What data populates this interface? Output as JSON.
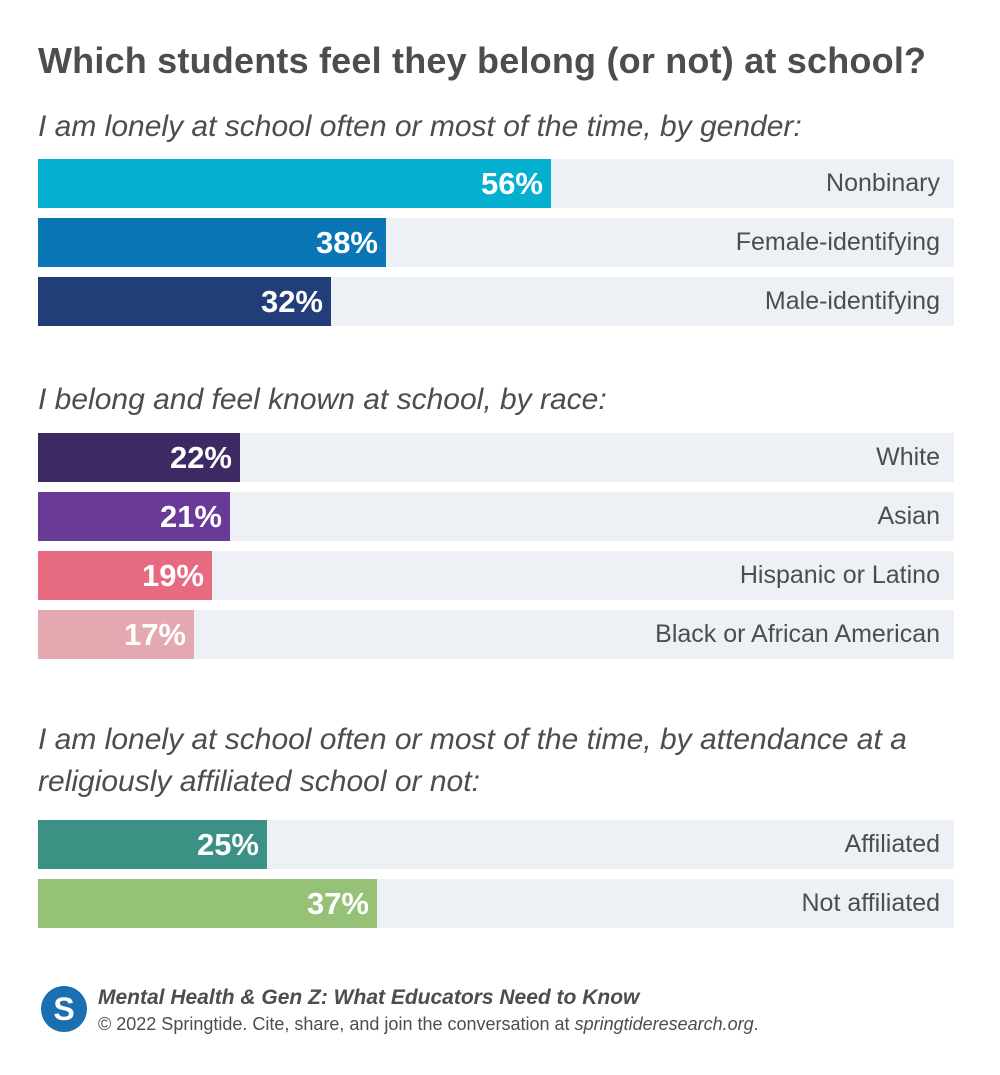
{
  "title": "Which students feel they belong (or not) at school?",
  "colors": {
    "track": "#edf1f6",
    "value_text": "#ffffff",
    "logo": "#1a6fb0"
  },
  "chart_data": [
    {
      "type": "bar",
      "orientation": "horizontal",
      "title": "I am lonely at school often or most of the time, by gender:",
      "categories": [
        "Nonbinary",
        "Female-identifying",
        "Male-identifying"
      ],
      "values": [
        56,
        38,
        32
      ],
      "value_labels": [
        "56%",
        "38%",
        "32%"
      ],
      "colors": [
        "#05afd0",
        "#0a76b6",
        "#223e78"
      ],
      "xlim": [
        0,
        100
      ]
    },
    {
      "type": "bar",
      "orientation": "horizontal",
      "title": "I belong and feel known at school, by race:",
      "categories": [
        "White",
        "Asian",
        "Hispanic or Latino",
        "Black or African American"
      ],
      "values": [
        22,
        21,
        19,
        17
      ],
      "value_labels": [
        "22%",
        "21%",
        "19%",
        "17%"
      ],
      "colors": [
        "#3d2a63",
        "#6a3a98",
        "#e66a80",
        "#e4a8b0"
      ],
      "xlim": [
        0,
        100
      ]
    },
    {
      "type": "bar",
      "orientation": "horizontal",
      "title": "I am lonely at school often or most of the time, by attendance at a religiously affiliated school or not:",
      "categories": [
        "Affiliated",
        "Not affiliated"
      ],
      "values": [
        25,
        37
      ],
      "value_labels": [
        "25%",
        "37%"
      ],
      "colors": [
        "#3a9184",
        "#96c277"
      ],
      "xlim": [
        0,
        100
      ]
    }
  ],
  "footer": {
    "logo_letter": "S",
    "publication": "Mental Health & Gen Z: What Educators Need to Know",
    "credit_prefix": "© 2022 Springtide. Cite, share, and join the conversation at ",
    "credit_site": "springtideresearch.org",
    "credit_suffix": "."
  }
}
